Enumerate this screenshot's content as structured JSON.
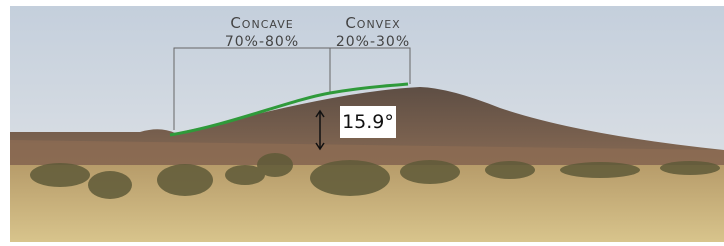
{
  "annotations": {
    "concave": {
      "label": "Concave",
      "share": "70%-80%"
    },
    "convex": {
      "label": "Convex",
      "share": "20%-30%"
    },
    "slope_angle": "15.9°"
  }
}
